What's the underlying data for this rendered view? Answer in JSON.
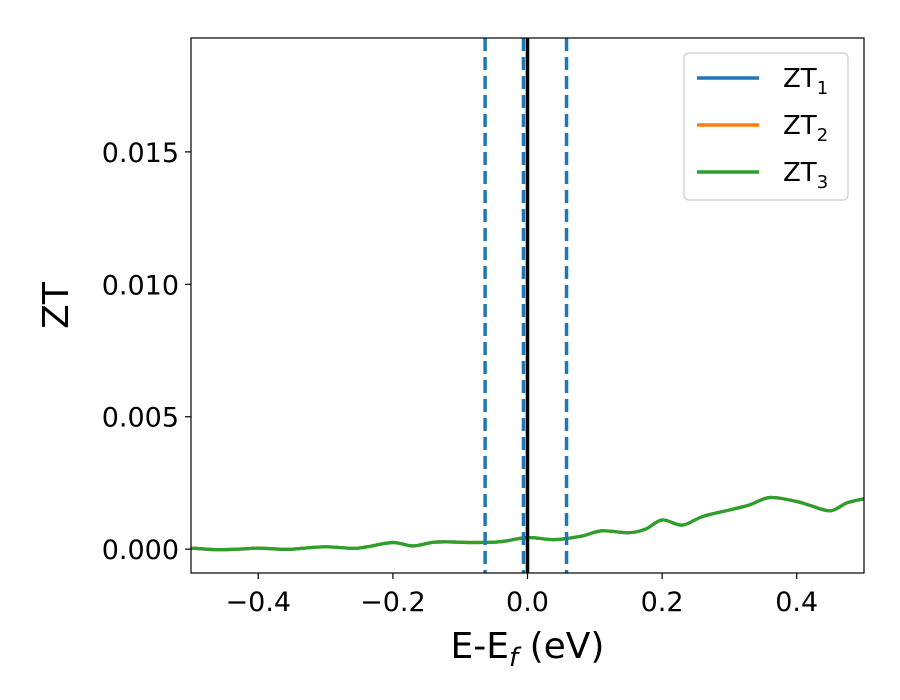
{
  "chart_data": {
    "type": "line",
    "xlabel": "E-E_f (eV)",
    "ylabel": "ZT",
    "xlim": [
      -0.5,
      0.5
    ],
    "ylim": [
      -0.0009,
      0.0193
    ],
    "x_ticks": [
      -0.4,
      -0.2,
      0.0,
      0.2,
      0.4
    ],
    "x_tick_labels": [
      "−0.4",
      "−0.2",
      "0.0",
      "0.2",
      "0.4"
    ],
    "y_ticks": [
      0.0,
      0.005,
      0.01,
      0.015
    ],
    "y_tick_labels": [
      "0.000",
      "0.005",
      "0.010",
      "0.015"
    ],
    "grid": false,
    "legend_position": "top-right",
    "vertical_lines": [
      {
        "x": -0.063,
        "style": "dashed",
        "color": "#1f77b4"
      },
      {
        "x": -0.006,
        "style": "dashed",
        "color": "#1f77b4"
      },
      {
        "x": 0.0,
        "style": "solid",
        "color": "#000000"
      },
      {
        "x": 0.058,
        "style": "dashed",
        "color": "#1f77b4"
      }
    ],
    "x": [
      -0.5,
      -0.46,
      -0.42,
      -0.4,
      -0.36,
      -0.34,
      -0.3,
      -0.26,
      -0.24,
      -0.2,
      -0.17,
      -0.14,
      -0.11,
      -0.08,
      -0.04,
      0.0,
      0.04,
      0.08,
      0.11,
      0.15,
      0.175,
      0.2,
      0.23,
      0.26,
      0.3,
      0.33,
      0.36,
      0.4,
      0.42,
      0.45,
      0.475,
      0.5
    ],
    "series": [
      {
        "name": "ZT_1",
        "legend_main": "ZT",
        "legend_sub": "1",
        "color": "#1f77b4",
        "values": [
          4e-05,
          -2e-05,
          1e-05,
          4e-05,
          -1e-05,
          2e-05,
          9e-05,
          3e-05,
          8e-05,
          0.00025,
          0.00012,
          0.00026,
          0.00027,
          0.00025,
          0.00028,
          0.00044,
          0.00036,
          0.00049,
          0.00069,
          0.00062,
          0.00075,
          0.0011,
          0.00091,
          0.00123,
          0.00148,
          0.00167,
          0.00195,
          0.0018,
          0.00165,
          0.00145,
          0.00175,
          0.0019
        ]
      },
      {
        "name": "ZT_2",
        "legend_main": "ZT",
        "legend_sub": "2",
        "color": "#ff7f0e",
        "values": [
          4e-05,
          -2e-05,
          1e-05,
          4e-05,
          -1e-05,
          2e-05,
          9e-05,
          3e-05,
          8e-05,
          0.00025,
          0.00012,
          0.00026,
          0.00027,
          0.00025,
          0.00028,
          0.00044,
          0.00036,
          0.00049,
          0.00069,
          0.00062,
          0.00075,
          0.0011,
          0.00091,
          0.00123,
          0.00148,
          0.00167,
          0.00195,
          0.0018,
          0.00165,
          0.00145,
          0.00175,
          0.0019
        ]
      },
      {
        "name": "ZT_3",
        "legend_main": "ZT",
        "legend_sub": "3",
        "color": "#2ca02c",
        "values": [
          4e-05,
          -2e-05,
          1e-05,
          4e-05,
          -1e-05,
          2e-05,
          9e-05,
          3e-05,
          8e-05,
          0.00025,
          0.00012,
          0.00026,
          0.00027,
          0.00025,
          0.00028,
          0.00044,
          0.00036,
          0.00049,
          0.00069,
          0.00062,
          0.00075,
          0.0011,
          0.00091,
          0.00123,
          0.00148,
          0.00167,
          0.00195,
          0.0018,
          0.00165,
          0.00145,
          0.00175,
          0.0019
        ]
      }
    ]
  }
}
